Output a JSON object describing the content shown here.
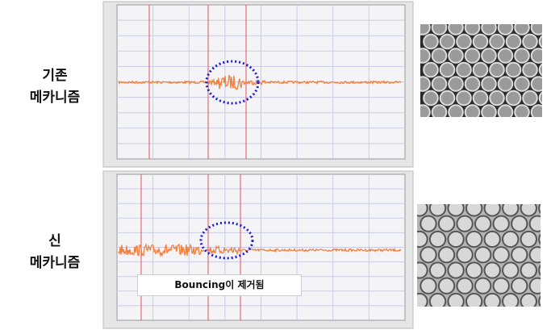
{
  "rows": [
    {
      "label_lines": [
        "기존",
        "메카니즘"
      ]
    },
    {
      "label_lines": [
        "신",
        "메카니즘"
      ]
    }
  ],
  "annotation": "Bouncing이 제거됨"
}
